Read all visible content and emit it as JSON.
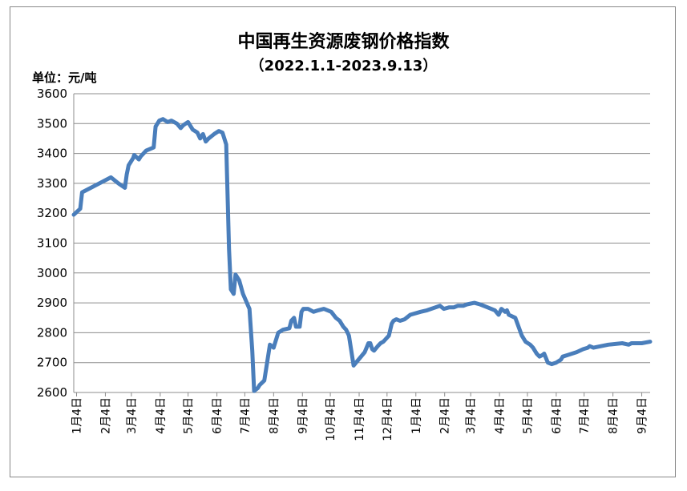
{
  "chart_data": {
    "type": "line",
    "title": "中国再生资源废钢价格指数",
    "subtitle": "（2022.1.1-2023.9.13）",
    "unit_label": "单位：元/吨",
    "ylim": [
      2600,
      3600
    ],
    "yticks": [
      2600,
      2700,
      2800,
      2900,
      3000,
      3100,
      3200,
      3300,
      3400,
      3500,
      3600
    ],
    "grid": true,
    "legend": "none",
    "line_color": "#4a7ebb",
    "xlim": [
      "2022-01-01",
      "2023-09-13"
    ],
    "x_tick_dates": [
      "2022-01-04",
      "2022-02-04",
      "2022-03-04",
      "2022-04-04",
      "2022-05-04",
      "2022-06-04",
      "2022-07-04",
      "2022-08-04",
      "2022-09-04",
      "2022-10-04",
      "2022-11-04",
      "2022-12-04",
      "2023-01-04",
      "2023-02-04",
      "2023-03-04",
      "2023-04-04",
      "2023-05-04",
      "2023-06-04",
      "2023-07-04",
      "2023-08-04",
      "2023-09-04"
    ],
    "x_tick_labels": [
      "1月4日",
      "2月4日",
      "3月4日",
      "4月4日",
      "5月4日",
      "6月4日",
      "7月4日",
      "8月4日",
      "9月4日",
      "10月4日",
      "11月4日",
      "12月4日",
      "1月4日",
      "2月4日",
      "3月4日",
      "4月4日",
      "5月4日",
      "6月4日",
      "7月4日",
      "8月4日",
      "9月4日"
    ],
    "series": [
      {
        "x": [
          "2022-01-01",
          "2022-01-08",
          "2022-01-10",
          "2022-02-10",
          "2022-02-18",
          "2022-02-25",
          "2022-02-27",
          "2022-03-01",
          "2022-03-06",
          "2022-03-07",
          "2022-03-12",
          "2022-03-14",
          "2022-03-20",
          "2022-03-28",
          "2022-03-30",
          "2022-04-03",
          "2022-04-07",
          "2022-04-12",
          "2022-04-16",
          "2022-04-22",
          "2022-04-26",
          "2022-04-29",
          "2022-05-04",
          "2022-05-09",
          "2022-05-14",
          "2022-05-17",
          "2022-05-20",
          "2022-05-23",
          "2022-05-26",
          "2022-06-01",
          "2022-06-06",
          "2022-06-10",
          "2022-06-14",
          "2022-06-17",
          "2022-06-19",
          "2022-06-22",
          "2022-06-24",
          "2022-06-28",
          "2022-07-02",
          "2022-07-09",
          "2022-07-12",
          "2022-07-14",
          "2022-07-16",
          "2022-07-18",
          "2022-07-20",
          "2022-07-25",
          "2022-07-28",
          "2022-07-31",
          "2022-08-04",
          "2022-08-06",
          "2022-08-09",
          "2022-08-14",
          "2022-08-21",
          "2022-08-23",
          "2022-08-26",
          "2022-08-28",
          "2022-09-01",
          "2022-09-03",
          "2022-09-05",
          "2022-09-10",
          "2022-09-16",
          "2022-09-21",
          "2022-09-27",
          "2022-10-05",
          "2022-10-10",
          "2022-10-14",
          "2022-10-18",
          "2022-10-21",
          "2022-10-24",
          "2022-10-29",
          "2022-11-10",
          "2022-11-14",
          "2022-11-16",
          "2022-11-18",
          "2022-11-20",
          "2022-11-24",
          "2022-11-27",
          "2022-11-30",
          "2022-12-06",
          "2022-12-09",
          "2022-12-11",
          "2022-12-14",
          "2022-12-18",
          "2022-12-23",
          "2022-12-29",
          "2023-01-09",
          "2023-01-16",
          "2023-01-30",
          "2023-02-03",
          "2023-02-09",
          "2023-02-14",
          "2023-02-18",
          "2023-02-24",
          "2023-02-28",
          "2023-03-08",
          "2023-03-14",
          "2023-03-22",
          "2023-03-30",
          "2023-04-03",
          "2023-04-06",
          "2023-04-10",
          "2023-04-12",
          "2023-04-14",
          "2023-04-21",
          "2023-04-28",
          "2023-05-02",
          "2023-05-07",
          "2023-05-10",
          "2023-05-12",
          "2023-05-14",
          "2023-05-17",
          "2023-05-20",
          "2023-05-22",
          "2023-05-26",
          "2023-05-30",
          "2023-06-04",
          "2023-06-09",
          "2023-06-11",
          "2023-06-16",
          "2023-06-26",
          "2023-07-03",
          "2023-07-08",
          "2023-07-10",
          "2023-07-14",
          "2023-07-30",
          "2023-08-14",
          "2023-08-21",
          "2023-08-24",
          "2023-09-04",
          "2023-09-13"
        ],
        "y": [
          3195,
          3215,
          3270,
          3320,
          3300,
          3285,
          3330,
          3360,
          3385,
          3395,
          3380,
          3390,
          3410,
          3420,
          3490,
          3510,
          3515,
          3505,
          3510,
          3500,
          3485,
          3495,
          3505,
          3480,
          3470,
          3450,
          3465,
          3440,
          3450,
          3465,
          3475,
          3470,
          3430,
          3080,
          2945,
          2930,
          2995,
          2975,
          2930,
          2880,
          2740,
          2605,
          2610,
          2615,
          2625,
          2640,
          2700,
          2760,
          2750,
          2770,
          2800,
          2810,
          2815,
          2840,
          2850,
          2820,
          2820,
          2870,
          2880,
          2880,
          2870,
          2875,
          2880,
          2870,
          2850,
          2840,
          2820,
          2810,
          2790,
          2690,
          2735,
          2765,
          2765,
          2745,
          2740,
          2755,
          2765,
          2770,
          2790,
          2830,
          2840,
          2845,
          2840,
          2845,
          2860,
          2870,
          2875,
          2890,
          2880,
          2885,
          2885,
          2890,
          2890,
          2895,
          2900,
          2895,
          2885,
          2875,
          2860,
          2880,
          2870,
          2875,
          2860,
          2850,
          2790,
          2770,
          2760,
          2750,
          2740,
          2730,
          2720,
          2725,
          2730,
          2700,
          2695,
          2700,
          2710,
          2720,
          2725,
          2735,
          2745,
          2750,
          2755,
          2750,
          2760,
          2765,
          2760,
          2765,
          2765,
          2770
        ]
      }
    ]
  }
}
